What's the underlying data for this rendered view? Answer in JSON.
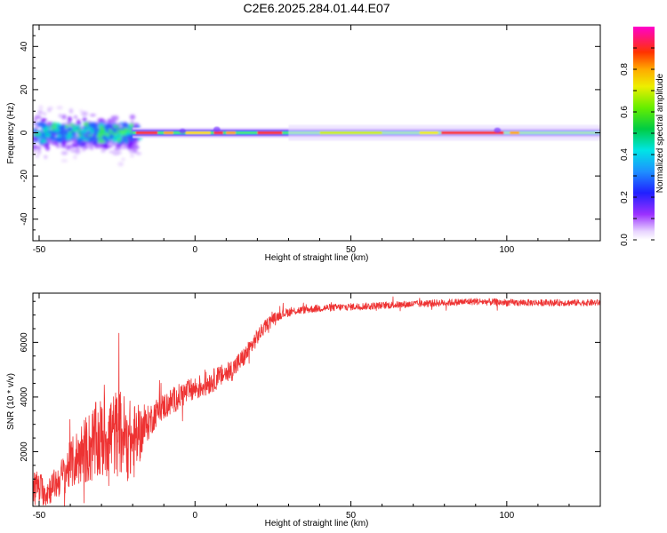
{
  "title": "C2E6.2025.284.01.44.E07",
  "colors": {
    "snr_line": "#ee3333",
    "spec_core": "#ff3333",
    "axis": "#000000"
  },
  "chart_data": [
    {
      "type": "heatmap",
      "name": "spectrogram",
      "xlabel": "Height of straight line (km)",
      "ylabel": "Frequency (Hz)",
      "xlim": [
        -52,
        130
      ],
      "ylim": [
        -50,
        50
      ],
      "xticks": [
        -50,
        0,
        50,
        100
      ],
      "yticks": [
        -40,
        -20,
        0,
        20,
        40
      ],
      "colorbar": {
        "label": "Normalized spectral amplitude",
        "range": [
          0,
          1
        ],
        "ticks": [
          0.0,
          0.2,
          0.4,
          0.6,
          0.8
        ]
      },
      "features": [
        {
          "desc": "scattered noise speckle",
          "x": [
            -52,
            -20
          ],
          "freq_range": [
            -15,
            15
          ],
          "amplitude": 0.25
        },
        {
          "desc": "main line near 0 Hz",
          "x": [
            -20,
            130
          ],
          "freq": 0,
          "amplitude": 0.6
        },
        {
          "desc": "peak region",
          "x": [
            75,
            100
          ],
          "freq": 1.5,
          "amplitude": 0.95
        }
      ]
    },
    {
      "type": "line",
      "name": "snr",
      "xlabel": "Height of straight line (km)",
      "ylabel": "SNR (10 * v/v)",
      "xlim": [
        -52,
        130
      ],
      "ylim": [
        0,
        7800
      ],
      "xticks": [
        -50,
        0,
        50,
        100
      ],
      "yticks": [
        2000,
        4000,
        6000
      ],
      "trend": {
        "x": [
          -52,
          -48,
          -44,
          -40,
          -36,
          -32,
          -28,
          -24,
          -20,
          -16,
          -12,
          -8,
          -4,
          0,
          4,
          8,
          12,
          16,
          20,
          24,
          28,
          32,
          36,
          40,
          50,
          60,
          70,
          80,
          90,
          100,
          110,
          120,
          130
        ],
        "y": [
          900,
          500,
          900,
          1500,
          2000,
          2300,
          2600,
          2700,
          2300,
          2900,
          3500,
          3800,
          4100,
          4300,
          4500,
          4750,
          5000,
          5500,
          6200,
          6800,
          7050,
          7150,
          7200,
          7250,
          7300,
          7350,
          7400,
          7450,
          7500,
          7450,
          7450,
          7450,
          7450
        ],
        "noise_amp": [
          550,
          550,
          600,
          900,
          1200,
          1500,
          1600,
          1600,
          1500,
          700,
          500,
          500,
          450,
          450,
          450,
          400,
          400,
          350,
          300,
          200,
          170,
          150,
          140,
          140,
          130,
          130,
          130,
          130,
          130,
          130,
          120,
          120,
          120
        ]
      }
    }
  ]
}
